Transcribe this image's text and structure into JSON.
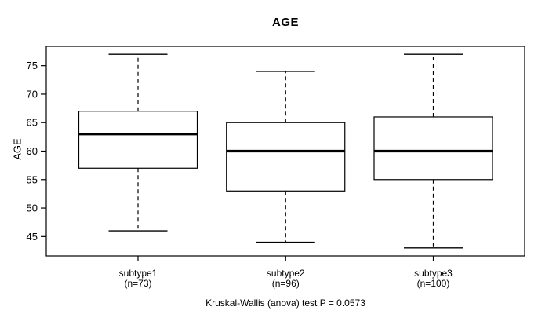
{
  "chart_data": {
    "type": "boxplot",
    "title": "AGE",
    "ylabel": "AGE",
    "caption": "Kruskal-Wallis (anova) test P = 0.0573",
    "yticks": [
      45,
      50,
      55,
      60,
      65,
      70,
      75
    ],
    "ylim": [
      41.6,
      78.4
    ],
    "grid": false,
    "legend": "none",
    "line_color": "#000000",
    "background_color": "#ffffff",
    "groups": [
      {
        "label": "subtype1",
        "count_label": "(n=73)",
        "whisker_low": 46,
        "q1": 57,
        "median": 63,
        "q3": 67,
        "whisker_high": 77
      },
      {
        "label": "subtype2",
        "count_label": "(n=96)",
        "whisker_low": 44,
        "q1": 53,
        "median": 60,
        "q3": 65,
        "whisker_high": 74
      },
      {
        "label": "subtype3",
        "count_label": "(n=100)",
        "whisker_low": 43,
        "q1": 55,
        "median": 60,
        "q3": 66,
        "whisker_high": 77
      }
    ]
  }
}
